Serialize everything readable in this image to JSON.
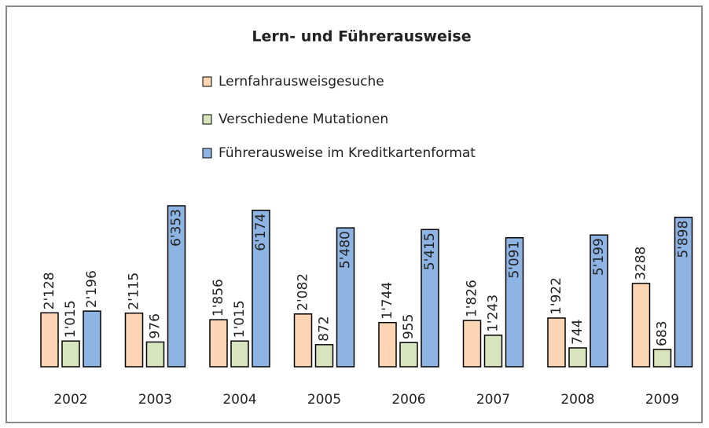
{
  "chart_data": {
    "type": "bar",
    "title": "Lern- und Führerausweise",
    "categories": [
      "2002",
      "2003",
      "2004",
      "2005",
      "2006",
      "2007",
      "2008",
      "2009"
    ],
    "series": [
      {
        "name": "Lernfahrausweisgesuche",
        "color": "#fcd5b5",
        "values": [
          2128,
          2115,
          1856,
          2082,
          1744,
          1826,
          1922,
          3288
        ],
        "value_labels": [
          "2'128",
          "2'115",
          "1'856",
          "2'082",
          "1'744",
          "1'826",
          "1'922",
          "3288"
        ]
      },
      {
        "name": "Verschiedene Mutationen",
        "color": "#d7e4bd",
        "values": [
          1015,
          976,
          1015,
          872,
          955,
          1243,
          744,
          683
        ],
        "value_labels": [
          "1'015",
          "976",
          "1'015",
          "872",
          "955",
          "1'243",
          "744",
          "683"
        ]
      },
      {
        "name": "Führerausweise im Kreditkartenformat",
        "color": "#8eb4e3",
        "values": [
          2196,
          6353,
          6174,
          5480,
          5415,
          5091,
          5199,
          5898
        ],
        "value_labels": [
          "2'196",
          "6'353",
          "6'174",
          "5'480",
          "5'415",
          "5'091",
          "5'199",
          "5'898"
        ]
      }
    ]
  }
}
